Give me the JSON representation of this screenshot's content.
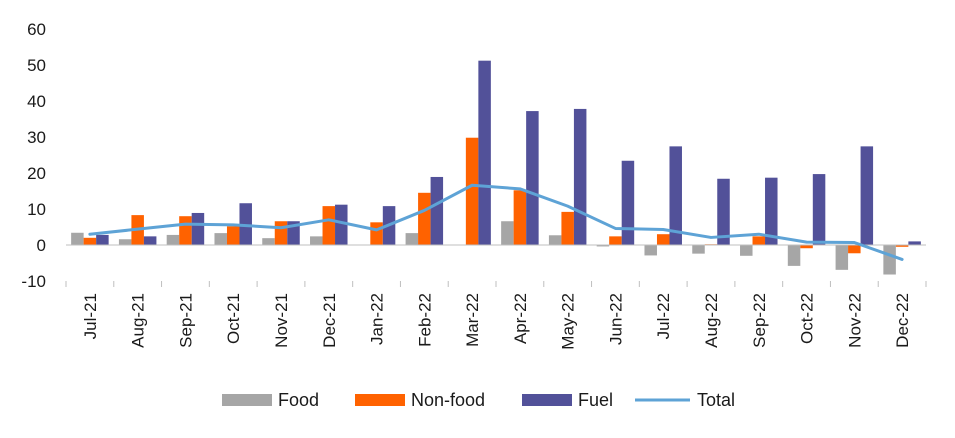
{
  "chart_data": {
    "type": "bar",
    "categories": [
      "Jul-21",
      "Aug-21",
      "Sep-21",
      "Oct-21",
      "Nov-21",
      "Dec-21",
      "Jan-22",
      "Feb-22",
      "Mar-22",
      "Apr-22",
      "May-22",
      "Jun-22",
      "Jul-22",
      "Aug-22",
      "Sep-22",
      "Oct-22",
      "Nov-22",
      "Dec-22"
    ],
    "ylim": [
      -10,
      60
    ],
    "yticks": [
      -10,
      0,
      10,
      20,
      30,
      40,
      50,
      60
    ],
    "ytick_labels": [
      "-10",
      "0",
      "10",
      "20",
      "30",
      "40",
      "50",
      "60"
    ],
    "grid": false,
    "legend_position": "bottom",
    "series": [
      {
        "name": "Food",
        "kind": "bar",
        "color": "#a6a6a6",
        "values": [
          3.4,
          1.6,
          2.8,
          3.3,
          1.9,
          2.4,
          0,
          3.3,
          0,
          6.6,
          2.7,
          -0.4,
          -2.9,
          -2.4,
          -3.0,
          -5.8,
          -6.9,
          -8.2
        ]
      },
      {
        "name": "Non-food",
        "kind": "bar",
        "color": "#ff6200",
        "values": [
          2.0,
          8.3,
          8.0,
          5.2,
          6.6,
          10.8,
          6.3,
          14.5,
          29.8,
          15.2,
          9.2,
          2.4,
          3.0,
          0.2,
          2.4,
          -0.9,
          -2.3,
          -0.5
        ]
      },
      {
        "name": "Fuel",
        "kind": "bar",
        "color": "#525199",
        "values": [
          2.8,
          2.4,
          8.9,
          11.6,
          6.6,
          11.2,
          10.8,
          18.9,
          51.2,
          37.2,
          37.8,
          23.4,
          27.4,
          18.4,
          18.7,
          19.7,
          27.4,
          1.0
        ]
      },
      {
        "name": "Total",
        "kind": "line",
        "color": "#5ea3d6",
        "values": [
          3.0,
          4.4,
          5.8,
          5.6,
          4.8,
          7.0,
          4.2,
          9.6,
          16.6,
          15.6,
          10.8,
          4.6,
          4.3,
          2.1,
          3.0,
          0.8,
          0.7,
          -4.0
        ]
      }
    ]
  }
}
